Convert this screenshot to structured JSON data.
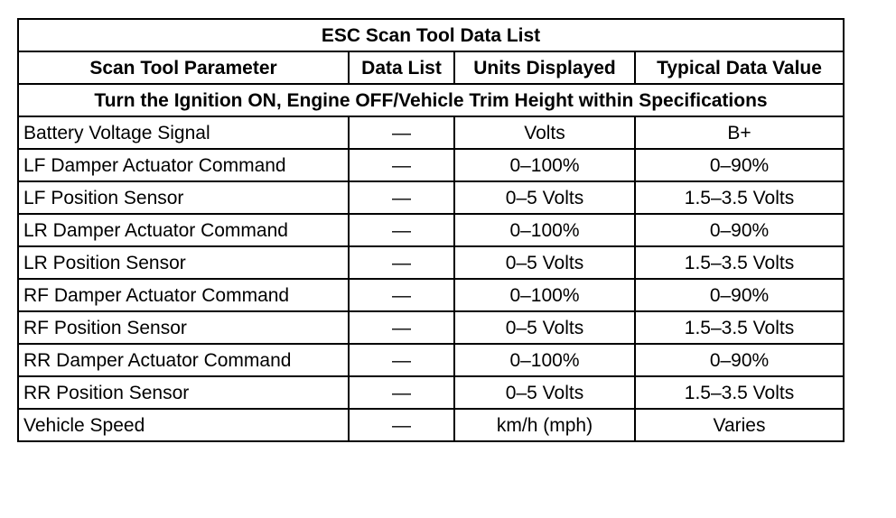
{
  "table": {
    "title": "ESC Scan Tool Data List",
    "headers": [
      "Scan Tool Parameter",
      "Data List",
      "Units Displayed",
      "Typical Data Value"
    ],
    "section": "Turn the Ignition ON, Engine OFF/Vehicle Trim Height within Specifications",
    "rows": [
      [
        "Battery Voltage Signal",
        "—",
        "Volts",
        "B+"
      ],
      [
        "LF Damper Actuator Command",
        "—",
        "0–100%",
        "0–90%"
      ],
      [
        "LF Position Sensor",
        "—",
        "0–5 Volts",
        "1.5–3.5 Volts"
      ],
      [
        "LR Damper Actuator Command",
        "—",
        "0–100%",
        "0–90%"
      ],
      [
        "LR Position Sensor",
        "—",
        "0–5 Volts",
        "1.5–3.5 Volts"
      ],
      [
        "RF Damper Actuator Command",
        "—",
        "0–100%",
        "0–90%"
      ],
      [
        "RF Position Sensor",
        "—",
        "0–5 Volts",
        "1.5–3.5 Volts"
      ],
      [
        "RR Damper Actuator Command",
        "—",
        "0–100%",
        "0–90%"
      ],
      [
        "RR Position Sensor",
        "—",
        "0–5 Volts",
        "1.5–3.5 Volts"
      ],
      [
        "Vehicle Speed",
        "—",
        "km/h (mph)",
        "Varies"
      ]
    ]
  }
}
